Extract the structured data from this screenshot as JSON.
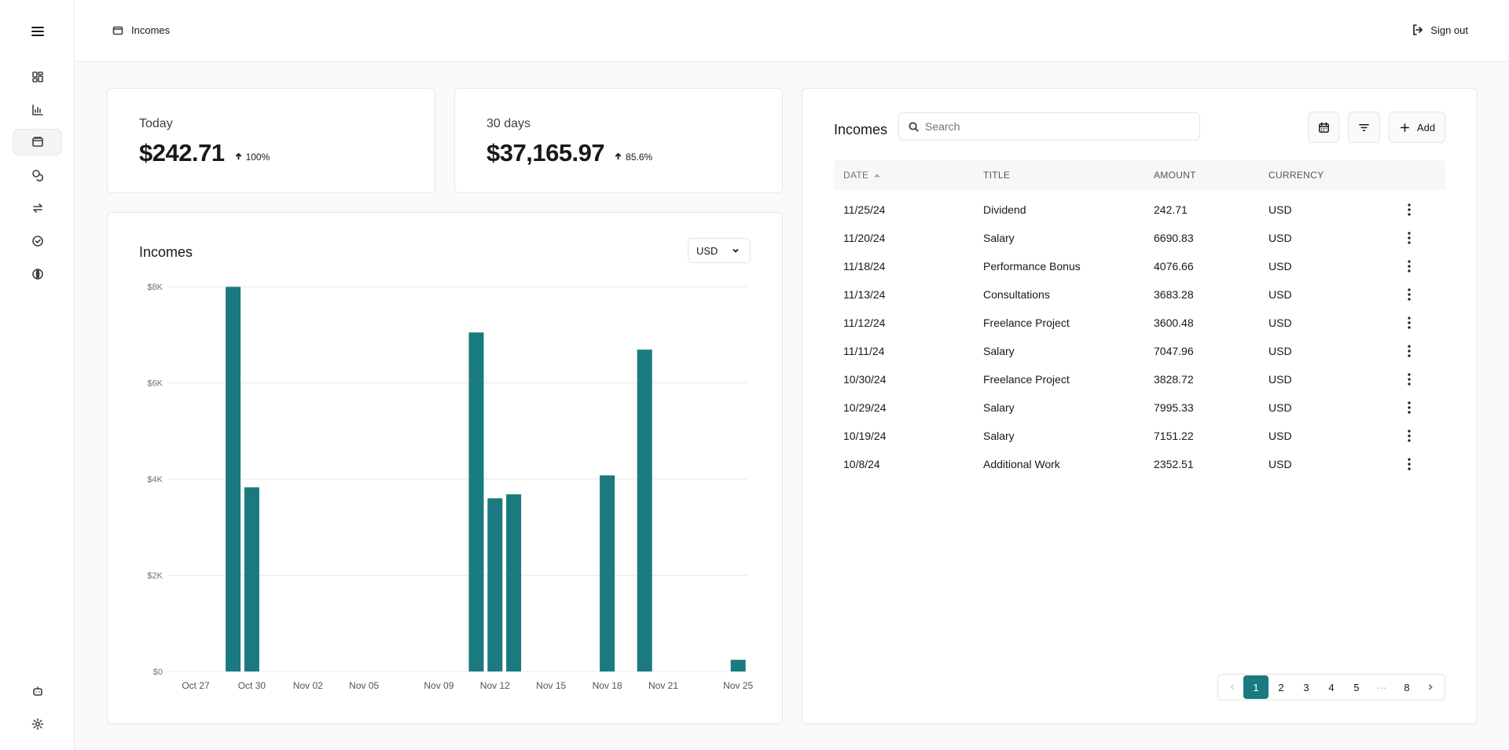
{
  "header": {
    "breadcrumb": "Incomes",
    "signout_label": "Sign out"
  },
  "sidebar": {
    "items": [
      {
        "name": "menu-icon"
      },
      {
        "name": "dashboard-icon"
      },
      {
        "name": "bar-chart-icon"
      },
      {
        "name": "wallet-icon",
        "active": true
      },
      {
        "name": "coins-icon"
      },
      {
        "name": "transfer-icon"
      },
      {
        "name": "check-circle-icon"
      },
      {
        "name": "globe-icon"
      },
      {
        "name": "bot-icon"
      },
      {
        "name": "settings-icon"
      }
    ]
  },
  "stats": {
    "today": {
      "label": "Today",
      "value": "$242.71",
      "change": "100%"
    },
    "thirty_days": {
      "label": "30 days",
      "value": "$37,165.97",
      "change": "85.6%"
    }
  },
  "chart_panel": {
    "title": "Incomes",
    "currency": "USD"
  },
  "chart_data": {
    "type": "bar",
    "ylim": [
      0,
      8000
    ],
    "yticks": [
      "$0",
      "$2K",
      "$4K",
      "$6K",
      "$8K"
    ],
    "ytick_values": [
      0,
      2000,
      4000,
      6000,
      8000
    ],
    "xtick_labels": [
      "Oct 27",
      "Oct 30",
      "Nov 02",
      "Nov 05",
      "Nov 09",
      "Nov 12",
      "Nov 15",
      "Nov 18",
      "Nov 21",
      "Nov 25"
    ],
    "xtick_day": [
      0,
      3,
      6,
      9,
      13,
      16,
      19,
      22,
      25,
      29
    ],
    "bars_day": [
      2,
      3,
      15,
      16,
      17,
      22,
      24,
      29
    ],
    "values": [
      7995.33,
      3828.72,
      7047.96,
      3600.48,
      3683.28,
      4076.66,
      6690.83,
      242.71
    ],
    "color": "#1a7a7f",
    "grid": true
  },
  "table_panel": {
    "title": "Incomes",
    "search_placeholder": "Search",
    "add_label": "Add",
    "columns": [
      "DATE",
      "TITLE",
      "AMOUNT",
      "CURRENCY"
    ],
    "rows": [
      {
        "date": "11/25/24",
        "title": "Dividend",
        "amount": "242.71",
        "currency": "USD"
      },
      {
        "date": "11/20/24",
        "title": "Salary",
        "amount": "6690.83",
        "currency": "USD"
      },
      {
        "date": "11/18/24",
        "title": "Performance Bonus",
        "amount": "4076.66",
        "currency": "USD"
      },
      {
        "date": "11/13/24",
        "title": "Consultations",
        "amount": "3683.28",
        "currency": "USD"
      },
      {
        "date": "11/12/24",
        "title": "Freelance Project",
        "amount": "3600.48",
        "currency": "USD"
      },
      {
        "date": "11/11/24",
        "title": "Salary",
        "amount": "7047.96",
        "currency": "USD"
      },
      {
        "date": "10/30/24",
        "title": "Freelance Project",
        "amount": "3828.72",
        "currency": "USD"
      },
      {
        "date": "10/29/24",
        "title": "Salary",
        "amount": "7995.33",
        "currency": "USD"
      },
      {
        "date": "10/19/24",
        "title": "Salary",
        "amount": "7151.22",
        "currency": "USD"
      },
      {
        "date": "10/8/24",
        "title": "Additional Work",
        "amount": "2352.51",
        "currency": "USD"
      }
    ],
    "pagination": {
      "pages": [
        "1",
        "2",
        "3",
        "4",
        "5",
        "···",
        "8"
      ],
      "current": "1"
    }
  }
}
